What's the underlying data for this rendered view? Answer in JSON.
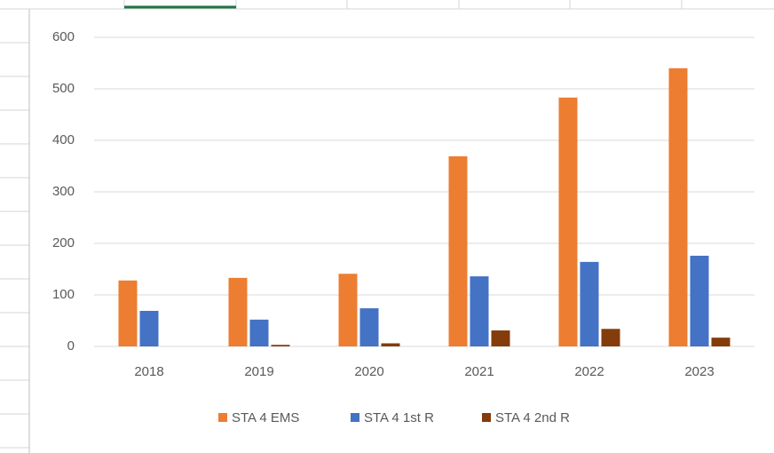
{
  "chart_data": {
    "type": "bar",
    "categories": [
      "2018",
      "2019",
      "2020",
      "2021",
      "2022",
      "2023"
    ],
    "series": [
      {
        "name": "STA 4 EMS",
        "color": "#ed7d31",
        "values": [
          128,
          133,
          141,
          369,
          483,
          540
        ]
      },
      {
        "name": "STA 4 1st R",
        "color": "#4472c4",
        "values": [
          69,
          52,
          74,
          136,
          164,
          176
        ]
      },
      {
        "name": "STA 4 2nd R",
        "color": "#843c0c",
        "values": [
          0,
          3,
          6,
          31,
          34,
          17
        ]
      }
    ],
    "ylim": [
      0,
      600
    ],
    "yticks": [
      0,
      100,
      200,
      300,
      400,
      500,
      600
    ],
    "grid": true,
    "legend": "bottom"
  }
}
